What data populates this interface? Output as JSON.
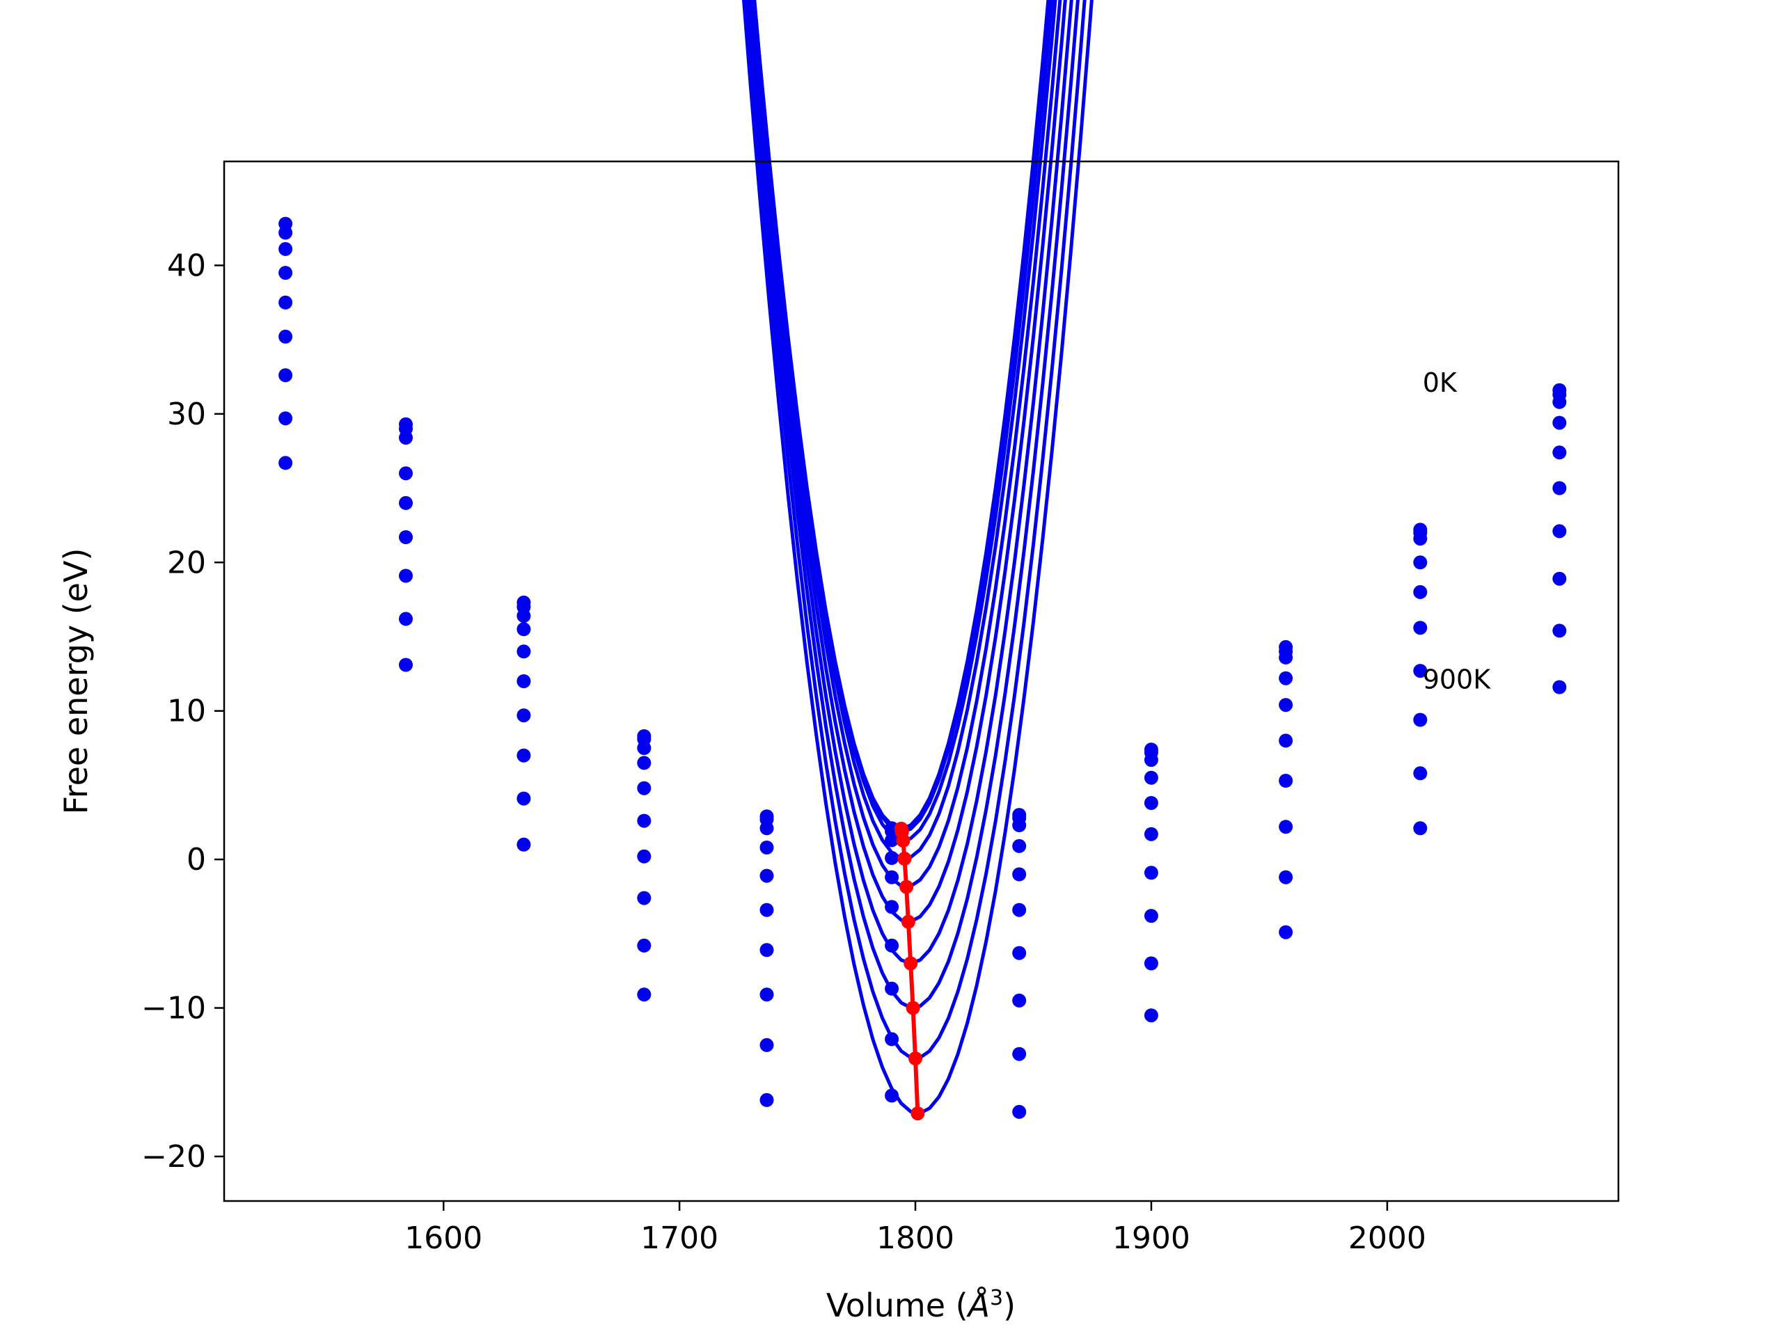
{
  "chart_data": {
    "type": "line",
    "xlabel": "Volume (",
    "xlabel_symbol": "Å",
    "xlabel_exp": "3",
    "xlabel_close": ")",
    "ylabel": "Free energy (eV)",
    "xlim": [
      1507,
      2098
    ],
    "ylim": [
      -23,
      47
    ],
    "xticks": [
      1600,
      1700,
      1800,
      1900,
      2000
    ],
    "yticks": [
      -20,
      -10,
      0,
      10,
      20,
      30,
      40
    ],
    "xtick_labels": [
      "1600",
      "1700",
      "1800",
      "1900",
      "2000"
    ],
    "ytick_labels": [
      "−20",
      "−10",
      "0",
      "10",
      "20",
      "30",
      "40"
    ],
    "grid": false,
    "annotations": [
      {
        "text": "0K",
        "x": 2015,
        "y": 31.5
      },
      {
        "text": "900K",
        "x": 2015,
        "y": 11.5
      }
    ],
    "x": [
      1533,
      1584,
      1634,
      1685,
      1737,
      1790,
      1844,
      1900,
      1957,
      2014,
      2073
    ],
    "series": [
      {
        "values": [
          42.8,
          29.3,
          17.3,
          8.3,
          2.9,
          2.1,
          3.0,
          7.4,
          14.3,
          22.2,
          31.6
        ],
        "fit": {
          "a": 0.0001436,
          "v0": 1794.0,
          "e0": 2.07
        }
      },
      {
        "values": [
          42.2,
          29.0,
          17.0,
          8.1,
          2.7,
          1.9,
          2.8,
          7.2,
          14.0,
          22.0,
          31.3
        ],
        "fit": {
          "a": 0.0001431,
          "v0": 1794.3,
          "e0": 1.85
        }
      },
      {
        "values": [
          41.1,
          28.4,
          16.4,
          7.5,
          2.1,
          1.3,
          2.3,
          6.7,
          13.6,
          21.6,
          30.8
        ],
        "fit": {
          "a": 0.0001422,
          "v0": 1794.8,
          "e0": 1.27
        }
      },
      {
        "values": [
          39.5,
          26.0,
          15.5,
          6.5,
          0.8,
          0.1,
          0.9,
          5.5,
          12.2,
          20.0,
          29.4
        ],
        "fit": {
          "a": 0.0001415,
          "v0": 1795.4,
          "e0": 0.05
        }
      },
      {
        "values": [
          37.5,
          24.0,
          14.0,
          4.8,
          -1.1,
          -1.2,
          -1.0,
          3.8,
          10.4,
          18.0,
          27.4
        ],
        "fit": {
          "a": 0.0001408,
          "v0": 1796.2,
          "e0": -1.85
        }
      },
      {
        "values": [
          35.2,
          21.7,
          12.0,
          2.6,
          -3.4,
          -3.2,
          -3.4,
          1.7,
          8.0,
          15.6,
          25.0
        ],
        "fit": {
          "a": 0.0001402,
          "v0": 1797.0,
          "e0": -4.2
        }
      },
      {
        "values": [
          32.6,
          19.1,
          9.7,
          0.2,
          -6.1,
          -5.8,
          -6.3,
          -0.9,
          5.3,
          12.7,
          22.1
        ],
        "fit": {
          "a": 0.0001396,
          "v0": 1798.0,
          "e0": -7.0
        }
      },
      {
        "values": [
          29.7,
          16.2,
          7.0,
          -2.6,
          -9.1,
          -8.7,
          -9.5,
          -3.8,
          2.2,
          9.4,
          18.9
        ],
        "fit": {
          "a": 0.000139,
          "v0": 1799.0,
          "e0": -10.0
        }
      },
      {
        "values": [
          26.7,
          13.1,
          4.1,
          -5.8,
          -12.5,
          -12.1,
          -13.1,
          -7.0,
          -1.2,
          5.8,
          15.4
        ],
        "fit": {
          "a": 0.0001384,
          "v0": 1800.0,
          "e0": -13.4
        }
      },
      {
        "values": [
          null,
          null,
          1.0,
          -9.1,
          -16.2,
          -15.9,
          -17.0,
          -10.5,
          -4.9,
          2.1,
          11.6
        ],
        "fit": {
          "a": 0.0001378,
          "v0": 1801.0,
          "e0": -17.1
        }
      }
    ],
    "fit_range": [
      1534,
      2073
    ],
    "minima_line": {
      "color": "#ff0000",
      "x": [
        1794.0,
        1794.3,
        1794.8,
        1795.4,
        1796.2,
        1797.0,
        1798.0,
        1799.0,
        1800.0,
        1801.0
      ],
      "y": [
        2.07,
        1.85,
        1.27,
        0.05,
        -1.85,
        -4.2,
        -7.0,
        -10.0,
        -13.4,
        -17.1
      ]
    },
    "series_color": "#0000ee"
  }
}
